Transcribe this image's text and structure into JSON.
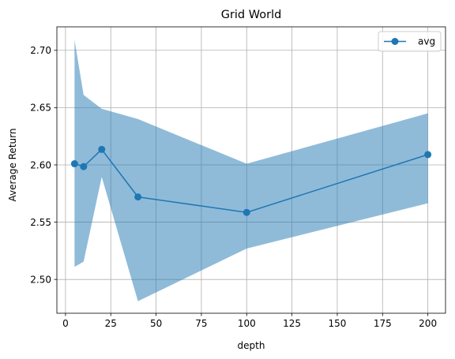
{
  "chart_data": {
    "type": "line",
    "title": "Grid World",
    "xlabel": "depth",
    "ylabel": "Average Return",
    "xlim": [
      -4.75,
      209.75
    ],
    "ylim": [
      2.4705,
      2.7205
    ],
    "xticks": [
      0,
      25,
      50,
      75,
      100,
      125,
      150,
      175,
      200
    ],
    "yticks": [
      2.5,
      2.55,
      2.6,
      2.65,
      2.7
    ],
    "xtick_labels": [
      "0",
      "25",
      "50",
      "75",
      "100",
      "125",
      "150",
      "175",
      "200"
    ],
    "ytick_labels": [
      "2.50",
      "2.55",
      "2.60",
      "2.65",
      "2.70"
    ],
    "grid": true,
    "legend_position": "top-right",
    "series": [
      {
        "name": "avg",
        "x": [
          5,
          10,
          20,
          40,
          100,
          200
        ],
        "values": [
          2.601,
          2.5985,
          2.6135,
          2.572,
          2.5585,
          2.609
        ],
        "lower": [
          2.511,
          2.5155,
          2.5895,
          2.481,
          2.527,
          2.5665
        ],
        "upper": [
          2.709,
          2.661,
          2.649,
          2.64,
          2.601,
          2.645
        ],
        "color": "#1f77b4",
        "band_color": "#1f77b4",
        "marker": "circle"
      }
    ]
  }
}
